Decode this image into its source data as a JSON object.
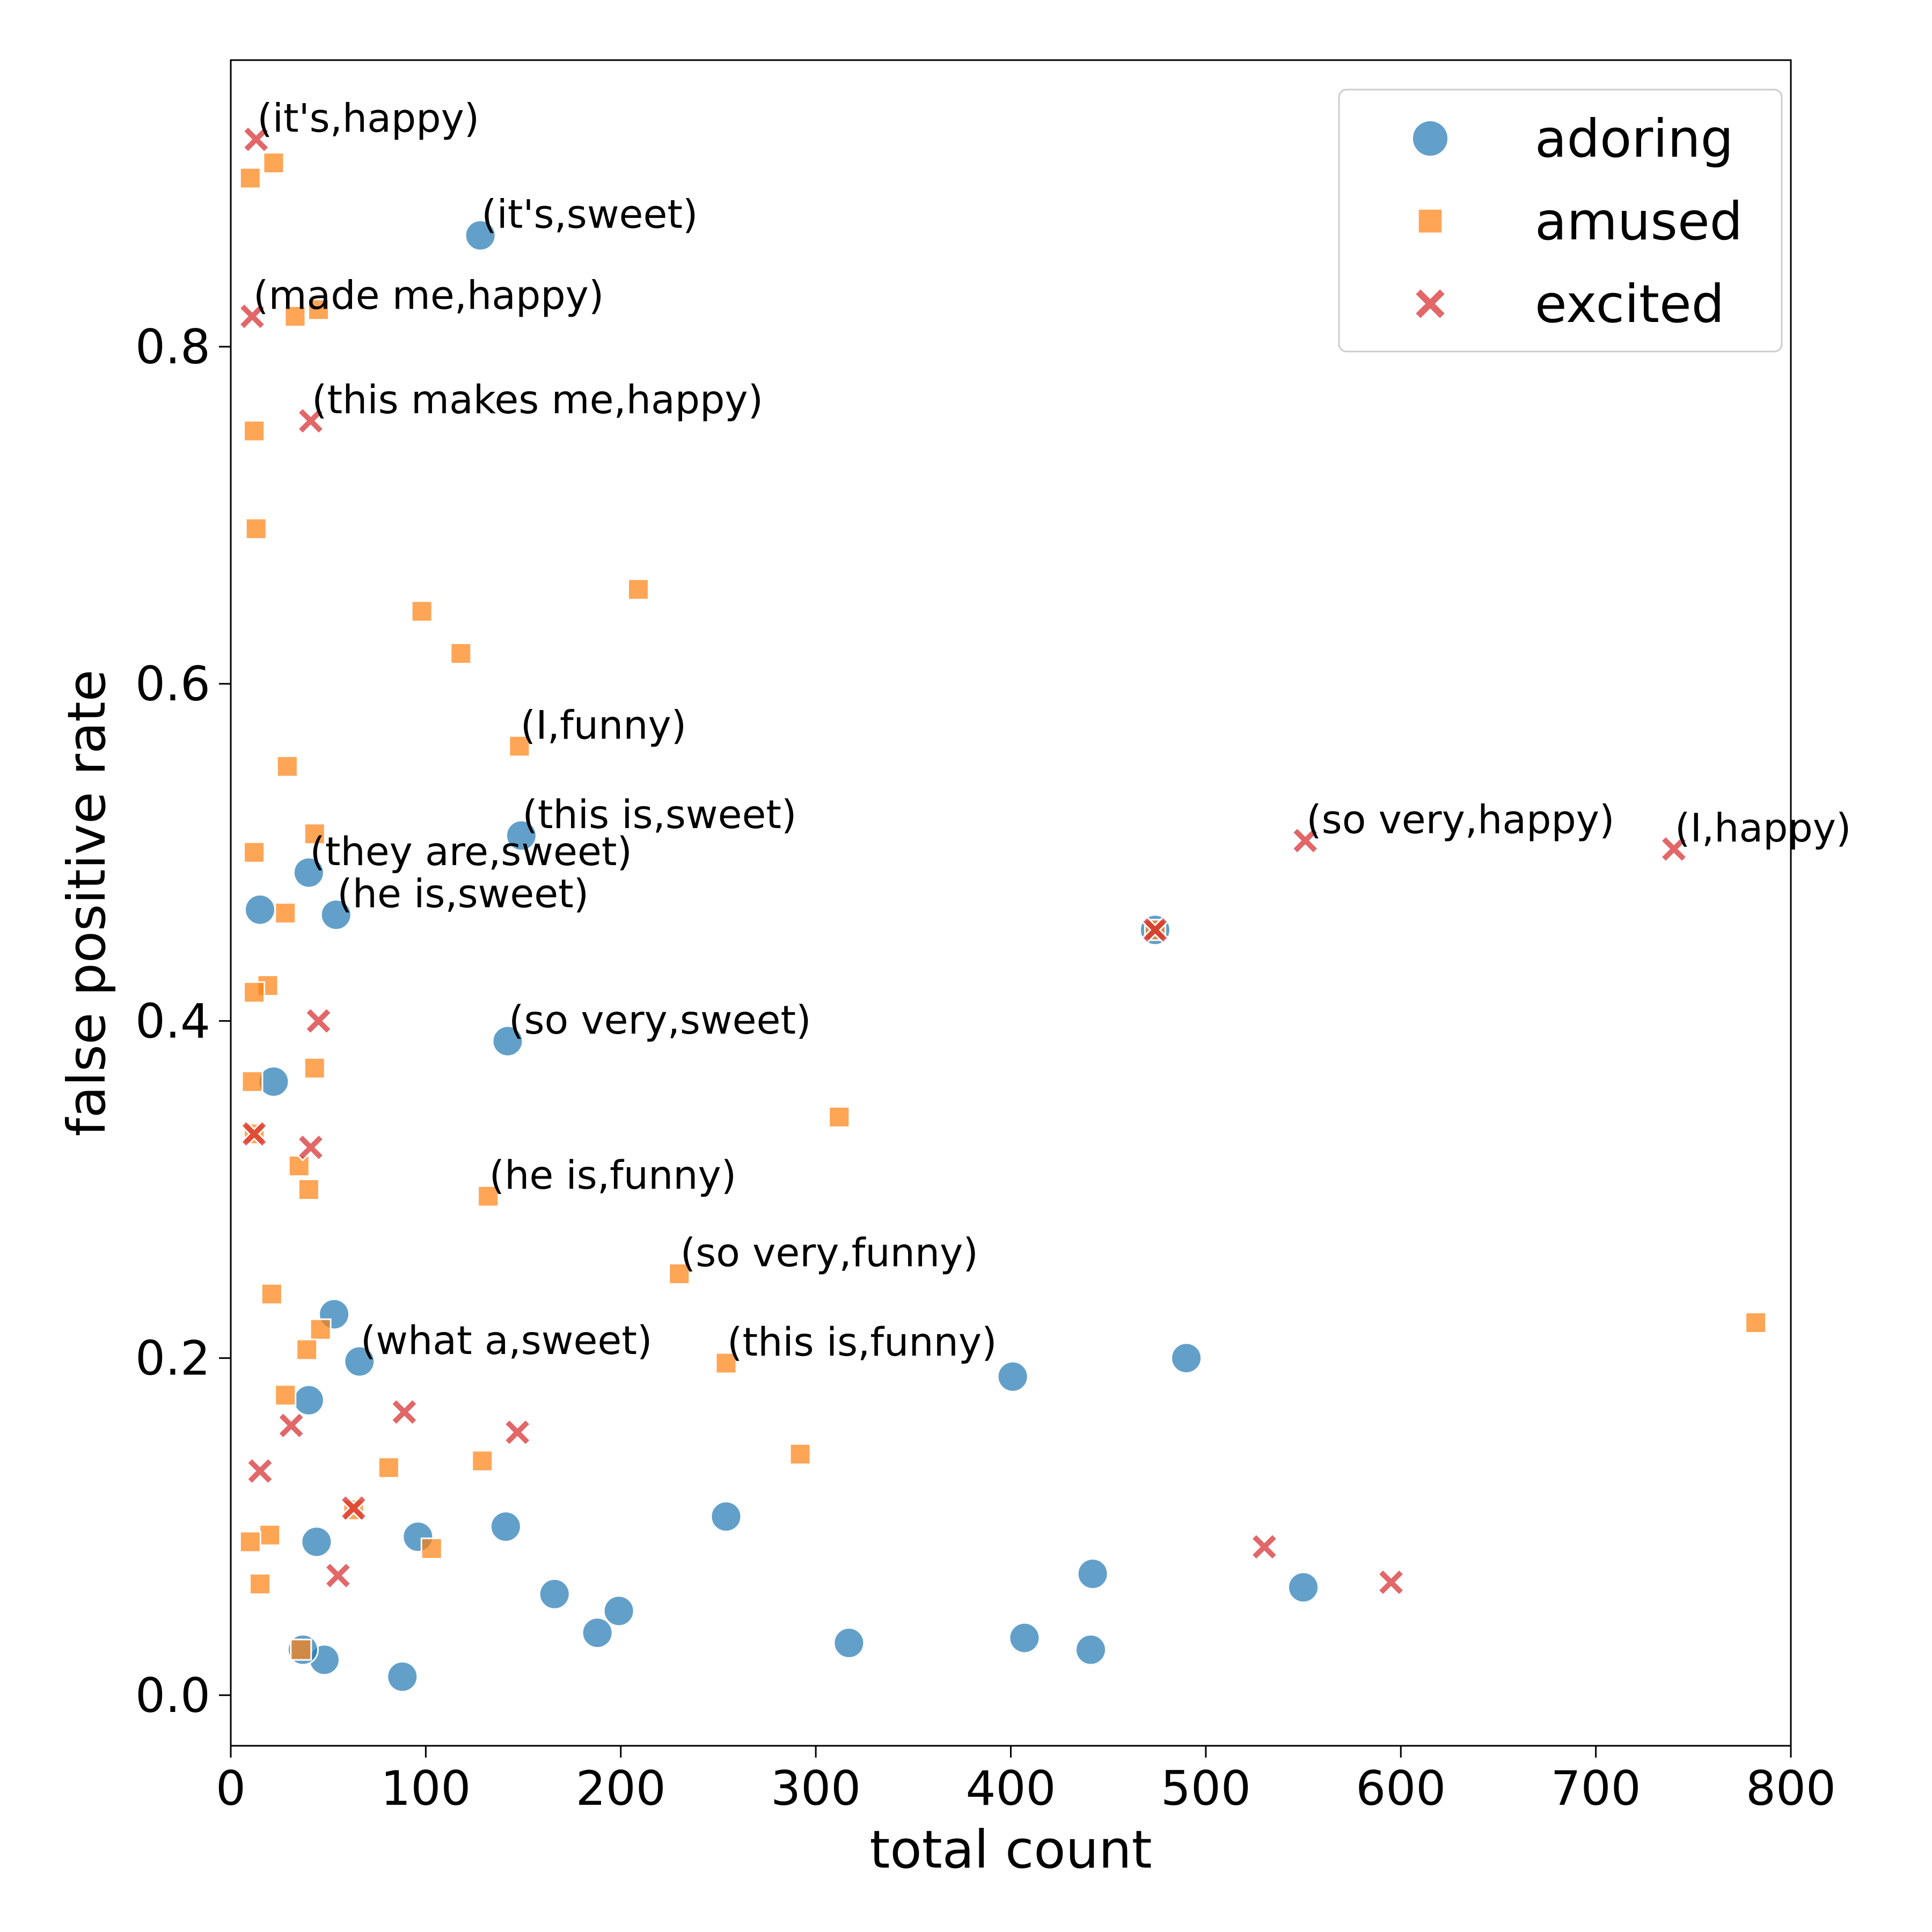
{
  "chart_data": {
    "type": "scatter",
    "xlabel": "total count",
    "ylabel": "false positive rate",
    "xlim": [
      0,
      800
    ],
    "ylim": [
      -0.03,
      0.97
    ],
    "xticks": [
      0,
      100,
      200,
      300,
      400,
      500,
      600,
      700,
      800
    ],
    "yticks": [
      0.0,
      0.2,
      0.4,
      0.6,
      0.8
    ],
    "xtick_labels": [
      "0",
      "100",
      "200",
      "300",
      "400",
      "500",
      "600",
      "700",
      "800"
    ],
    "ytick_labels": [
      "0.0",
      "0.2",
      "0.4",
      "0.6",
      "0.8"
    ],
    "grid": false,
    "legend_position": "top-right",
    "series": [
      {
        "name": "adoring",
        "marker": "circle",
        "color": "#1f77b4",
        "points": [
          [
            128,
            0.866
          ],
          [
            40,
            0.488
          ],
          [
            149,
            0.51
          ],
          [
            54,
            0.463
          ],
          [
            15,
            0.466
          ],
          [
            142,
            0.388
          ],
          [
            22,
            0.364
          ],
          [
            53,
            0.226
          ],
          [
            66,
            0.198
          ],
          [
            40,
            0.175
          ],
          [
            44,
            0.091
          ],
          [
            96,
            0.094
          ],
          [
            141,
            0.1
          ],
          [
            254,
            0.106
          ],
          [
            166,
            0.06
          ],
          [
            199,
            0.05
          ],
          [
            188,
            0.037
          ],
          [
            48,
            0.021
          ],
          [
            37,
            0.027
          ],
          [
            88,
            0.011
          ],
          [
            317,
            0.031
          ],
          [
            407,
            0.034
          ],
          [
            442,
            0.072
          ],
          [
            441,
            0.027
          ],
          [
            401,
            0.189
          ],
          [
            490,
            0.2
          ],
          [
            550,
            0.064
          ],
          [
            474,
            0.454
          ]
        ]
      },
      {
        "name": "amused",
        "marker": "square",
        "color": "#ff7f0e",
        "points": [
          [
            22,
            0.909
          ],
          [
            10,
            0.9
          ],
          [
            33,
            0.818
          ],
          [
            45,
            0.822
          ],
          [
            12,
            0.75
          ],
          [
            13,
            0.692
          ],
          [
            209,
            0.656
          ],
          [
            98,
            0.643
          ],
          [
            118,
            0.618
          ],
          [
            148,
            0.563
          ],
          [
            29,
            0.551
          ],
          [
            43,
            0.511
          ],
          [
            12,
            0.5
          ],
          [
            28,
            0.464
          ],
          [
            19,
            0.421
          ],
          [
            12,
            0.417
          ],
          [
            43,
            0.372
          ],
          [
            11,
            0.364
          ],
          [
            12,
            0.333
          ],
          [
            35,
            0.314
          ],
          [
            40,
            0.3
          ],
          [
            132,
            0.296
          ],
          [
            312,
            0.343
          ],
          [
            230,
            0.25
          ],
          [
            21,
            0.238
          ],
          [
            46,
            0.217
          ],
          [
            39,
            0.205
          ],
          [
            254,
            0.197
          ],
          [
            28,
            0.178
          ],
          [
            81,
            0.135
          ],
          [
            129,
            0.139
          ],
          [
            292,
            0.143
          ],
          [
            63,
            0.11
          ],
          [
            20,
            0.095
          ],
          [
            10,
            0.091
          ],
          [
            103,
            0.087
          ],
          [
            15,
            0.066
          ],
          [
            36,
            0.027
          ],
          [
            782,
            0.221
          ],
          [
            474,
            0.454
          ]
        ]
      },
      {
        "name": "excited",
        "marker": "x",
        "color": "#d62728",
        "points": [
          [
            13,
            0.923
          ],
          [
            11,
            0.818
          ],
          [
            41,
            0.756
          ],
          [
            45,
            0.4
          ],
          [
            41,
            0.325
          ],
          [
            12,
            0.333
          ],
          [
            31,
            0.16
          ],
          [
            89,
            0.168
          ],
          [
            147,
            0.156
          ],
          [
            15,
            0.133
          ],
          [
            63,
            0.111
          ],
          [
            55,
            0.071
          ],
          [
            530,
            0.088
          ],
          [
            595,
            0.067
          ],
          [
            551,
            0.507
          ],
          [
            740,
            0.502
          ],
          [
            474,
            0.454
          ]
        ]
      }
    ],
    "annotations": [
      {
        "text": "(it's,happy)",
        "x": 13,
        "y": 0.923
      },
      {
        "text": "(it's,sweet)",
        "x": 128,
        "y": 0.866
      },
      {
        "text": "(made me,happy)",
        "x": 11,
        "y": 0.818
      },
      {
        "text": "(this makes me,happy)",
        "x": 41,
        "y": 0.756
      },
      {
        "text": "(I,funny)",
        "x": 148,
        "y": 0.563
      },
      {
        "text": "(this is,sweet)",
        "x": 149,
        "y": 0.51
      },
      {
        "text": "(they are,sweet)",
        "x": 40,
        "y": 0.488
      },
      {
        "text": "(he is,sweet)",
        "x": 54,
        "y": 0.463
      },
      {
        "text": "(so very,happy)",
        "x": 551,
        "y": 0.507
      },
      {
        "text": "(I,happy)",
        "x": 740,
        "y": 0.502
      },
      {
        "text": "(so very,sweet)",
        "x": 142,
        "y": 0.388
      },
      {
        "text": "(he is,funny)",
        "x": 132,
        "y": 0.296
      },
      {
        "text": "(so very,funny)",
        "x": 230,
        "y": 0.25
      },
      {
        "text": "(what a,sweet)",
        "x": 66,
        "y": 0.198
      },
      {
        "text": "(this is,funny)",
        "x": 254,
        "y": 0.197
      }
    ]
  }
}
